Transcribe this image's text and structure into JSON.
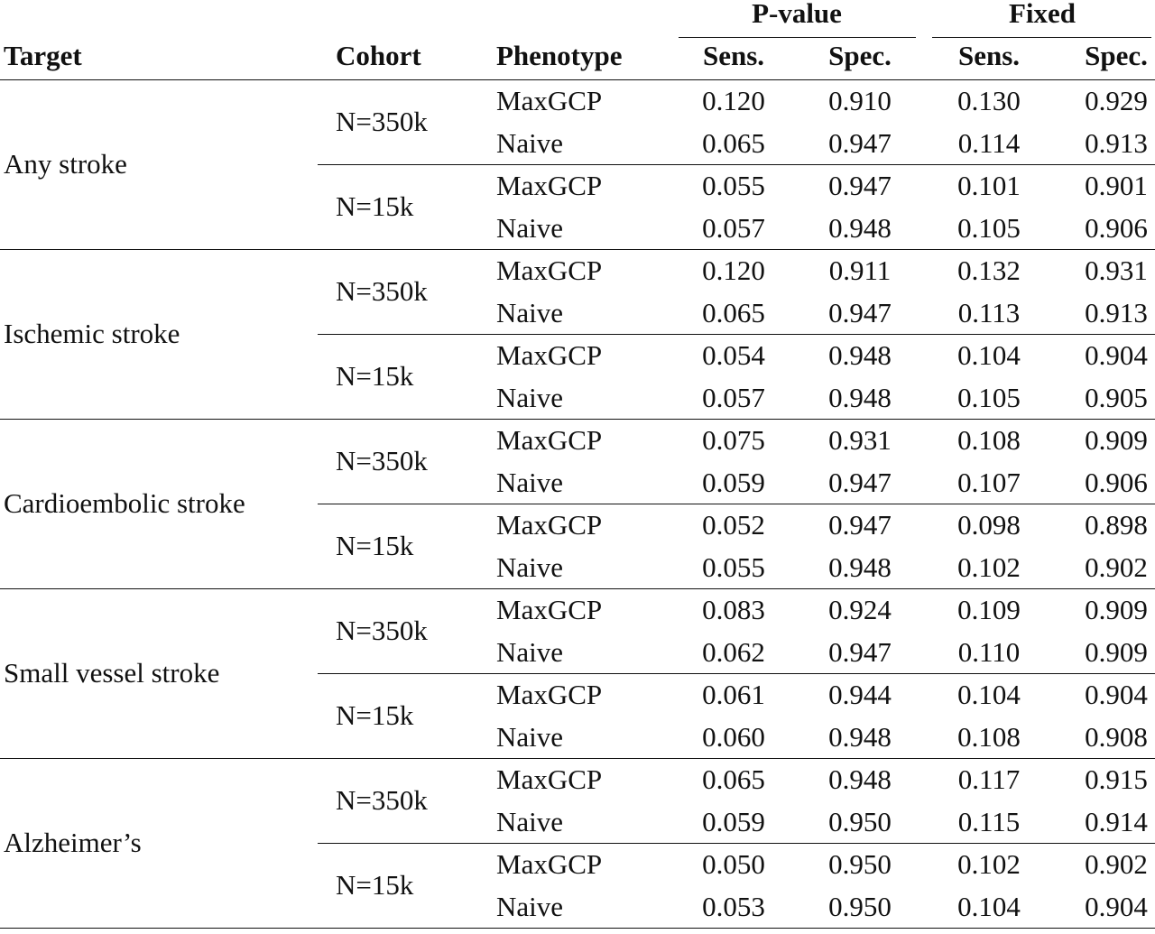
{
  "table": {
    "groups": [
      "P-value",
      "Fixed"
    ],
    "columns": [
      "Target",
      "Cohort",
      "Phenotype",
      "Sens.",
      "Spec.",
      "Sens.",
      "Spec."
    ],
    "targets": [
      {
        "name": "Any stroke",
        "cohorts": [
          {
            "name": "N=350k",
            "rows": [
              {
                "phenotype": "MaxGCP",
                "values": [
                  "0.120",
                  "0.910",
                  "0.130",
                  "0.929"
                ]
              },
              {
                "phenotype": "Naive",
                "values": [
                  "0.065",
                  "0.947",
                  "0.114",
                  "0.913"
                ]
              }
            ]
          },
          {
            "name": "N=15k",
            "rows": [
              {
                "phenotype": "MaxGCP",
                "values": [
                  "0.055",
                  "0.947",
                  "0.101",
                  "0.901"
                ]
              },
              {
                "phenotype": "Naive",
                "values": [
                  "0.057",
                  "0.948",
                  "0.105",
                  "0.906"
                ]
              }
            ]
          }
        ]
      },
      {
        "name": "Ischemic stroke",
        "cohorts": [
          {
            "name": "N=350k",
            "rows": [
              {
                "phenotype": "MaxGCP",
                "values": [
                  "0.120",
                  "0.911",
                  "0.132",
                  "0.931"
                ]
              },
              {
                "phenotype": "Naive",
                "values": [
                  "0.065",
                  "0.947",
                  "0.113",
                  "0.913"
                ]
              }
            ]
          },
          {
            "name": "N=15k",
            "rows": [
              {
                "phenotype": "MaxGCP",
                "values": [
                  "0.054",
                  "0.948",
                  "0.104",
                  "0.904"
                ]
              },
              {
                "phenotype": "Naive",
                "values": [
                  "0.057",
                  "0.948",
                  "0.105",
                  "0.905"
                ]
              }
            ]
          }
        ]
      },
      {
        "name": "Cardioembolic stroke",
        "cohorts": [
          {
            "name": "N=350k",
            "rows": [
              {
                "phenotype": "MaxGCP",
                "values": [
                  "0.075",
                  "0.931",
                  "0.108",
                  "0.909"
                ]
              },
              {
                "phenotype": "Naive",
                "values": [
                  "0.059",
                  "0.947",
                  "0.107",
                  "0.906"
                ]
              }
            ]
          },
          {
            "name": "N=15k",
            "rows": [
              {
                "phenotype": "MaxGCP",
                "values": [
                  "0.052",
                  "0.947",
                  "0.098",
                  "0.898"
                ]
              },
              {
                "phenotype": "Naive",
                "values": [
                  "0.055",
                  "0.948",
                  "0.102",
                  "0.902"
                ]
              }
            ]
          }
        ]
      },
      {
        "name": "Small vessel stroke",
        "cohorts": [
          {
            "name": "N=350k",
            "rows": [
              {
                "phenotype": "MaxGCP",
                "values": [
                  "0.083",
                  "0.924",
                  "0.109",
                  "0.909"
                ]
              },
              {
                "phenotype": "Naive",
                "values": [
                  "0.062",
                  "0.947",
                  "0.110",
                  "0.909"
                ]
              }
            ]
          },
          {
            "name": "N=15k",
            "rows": [
              {
                "phenotype": "MaxGCP",
                "values": [
                  "0.061",
                  "0.944",
                  "0.104",
                  "0.904"
                ]
              },
              {
                "phenotype": "Naive",
                "values": [
                  "0.060",
                  "0.948",
                  "0.108",
                  "0.908"
                ]
              }
            ]
          }
        ]
      },
      {
        "name": "Alzheimer’s",
        "cohorts": [
          {
            "name": "N=350k",
            "rows": [
              {
                "phenotype": "MaxGCP",
                "values": [
                  "0.065",
                  "0.948",
                  "0.117",
                  "0.915"
                ]
              },
              {
                "phenotype": "Naive",
                "values": [
                  "0.059",
                  "0.950",
                  "0.115",
                  "0.914"
                ]
              }
            ]
          },
          {
            "name": "N=15k",
            "rows": [
              {
                "phenotype": "MaxGCP",
                "values": [
                  "0.050",
                  "0.950",
                  "0.102",
                  "0.902"
                ]
              },
              {
                "phenotype": "Naive",
                "values": [
                  "0.053",
                  "0.950",
                  "0.104",
                  "0.904"
                ]
              }
            ]
          }
        ]
      }
    ]
  }
}
